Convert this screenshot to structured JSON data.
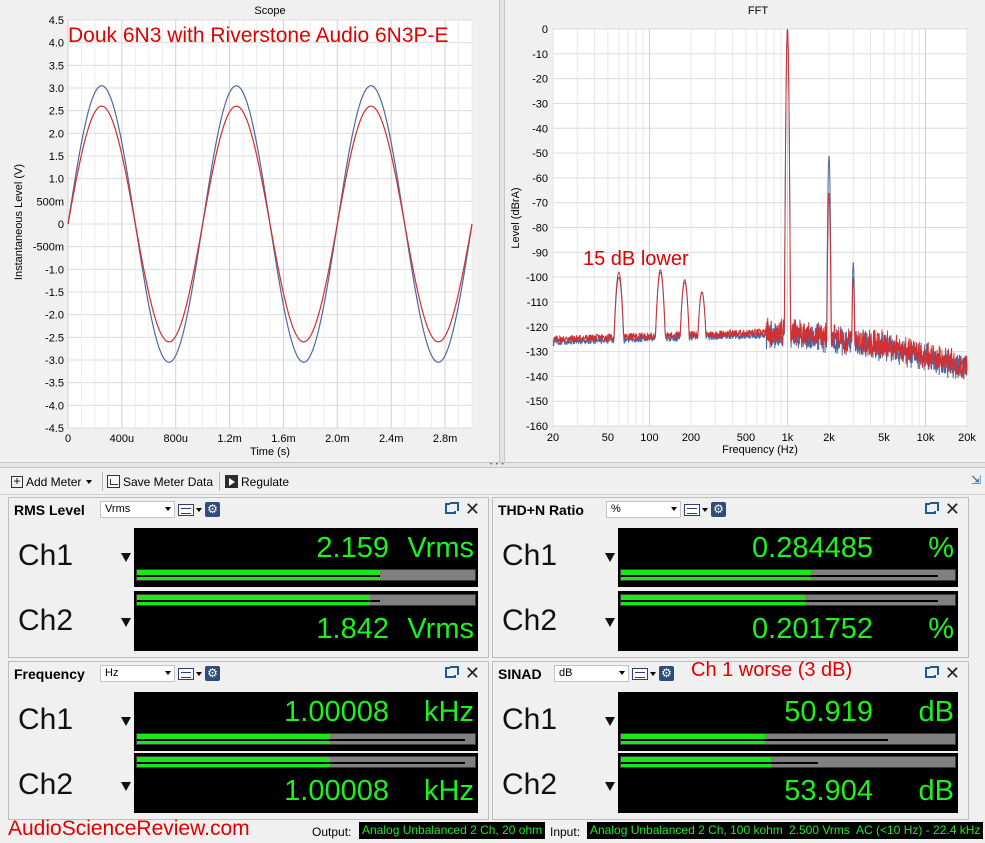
{
  "colors": {
    "ch1_trace": "#4a6aa5",
    "ch2_trace": "#d42e2e",
    "meter_text": "#1df21d",
    "bar_fill": "#16e916",
    "annotation": "#e00000"
  },
  "annotations": {
    "scope_overlay": "Douk 6N3 with Riverstone Audio 6N3P-E",
    "fft_overlay": "15 dB lower",
    "sinad_overlay": "Ch 1 worse (3 dB)"
  },
  "scope": {
    "title": "Scope",
    "xlabel": "Time (s)",
    "ylabel": "Instantaneous Level (V)",
    "yticks": [
      "4.5",
      "4.0",
      "3.5",
      "3.0",
      "2.5",
      "2.0",
      "1.5",
      "1.0",
      "500m",
      "0",
      "-500m",
      "-1.0",
      "-1.5",
      "-2.0",
      "-2.5",
      "-3.0",
      "-3.5",
      "-4.0",
      "-4.5"
    ],
    "xticks": [
      "0",
      "400u",
      "800u",
      "1.2m",
      "1.6m",
      "2.0m",
      "2.4m",
      "2.8m"
    ]
  },
  "fft": {
    "title": "FFT",
    "xlabel": "Frequency (Hz)",
    "ylabel": "Level (dBrA)",
    "yticks": [
      "0",
      "-10",
      "-20",
      "-30",
      "-40",
      "-50",
      "-60",
      "-70",
      "-80",
      "-90",
      "-100",
      "-110",
      "-120",
      "-130",
      "-140",
      "-150",
      "-160"
    ],
    "xticks": [
      "20",
      "50",
      "100",
      "200",
      "500",
      "1k",
      "2k",
      "5k",
      "10k",
      "20k"
    ]
  },
  "chart_data": [
    {
      "type": "line",
      "title": "Scope",
      "xlabel": "Time (s)",
      "ylabel": "Instantaneous Level (V)",
      "xlim": [
        0,
        0.003
      ],
      "ylim": [
        -4.5,
        4.5
      ],
      "grid": true,
      "series": [
        {
          "name": "Ch1",
          "shape": "sine",
          "frequency_hz": 1000,
          "amplitude_v": 3.05,
          "phase_zero_crossing_s": 0
        },
        {
          "name": "Ch2",
          "shape": "sine",
          "frequency_hz": 1000,
          "amplitude_v": 2.6,
          "phase_zero_crossing_s": 0
        }
      ]
    },
    {
      "type": "line",
      "title": "FFT",
      "xlabel": "Frequency (Hz)",
      "ylabel": "Level (dBrA)",
      "xscale": "log",
      "xlim": [
        20,
        20000
      ],
      "ylim": [
        -160,
        0
      ],
      "grid": true,
      "series": [
        {
          "name": "Ch1",
          "peaks": [
            [
              60,
              -100
            ],
            [
              120,
              -98
            ],
            [
              180,
              -102
            ],
            [
              240,
              -106
            ],
            [
              1000,
              0
            ],
            [
              2000,
              -51
            ],
            [
              3000,
              -94
            ]
          ],
          "noise_floor_db": [
            [
              20,
              -126
            ],
            [
              1000,
              -123
            ],
            [
              5000,
              -128
            ],
            [
              20000,
              -137
            ]
          ]
        },
        {
          "name": "Ch2",
          "peaks": [
            [
              60,
              -98
            ],
            [
              120,
              -97
            ],
            [
              180,
              -101
            ],
            [
              240,
              -106
            ],
            [
              1000,
              0
            ],
            [
              2000,
              -66
            ],
            [
              3000,
              -100
            ]
          ],
          "noise_floor_db": [
            [
              20,
              -125
            ],
            [
              1000,
              -122
            ],
            [
              5000,
              -127
            ],
            [
              20000,
              -136
            ]
          ]
        }
      ]
    }
  ],
  "toolbar": {
    "add_meter": "Add Meter",
    "save_meter_data": "Save Meter Data",
    "regulate": "Regulate"
  },
  "meters": {
    "rms": {
      "title": "RMS Level",
      "unit_select": "Vrms",
      "ch1_label": "Ch1",
      "ch1_value": "2.159",
      "ch1_unit": "Vrms",
      "ch1_bar_fraction": 0.72,
      "ch1_peak_fraction": 0.72,
      "ch2_label": "Ch2",
      "ch2_value": "1.842",
      "ch2_unit": "Vrms",
      "ch2_bar_fraction": 0.69,
      "ch2_peak_fraction": 0.72
    },
    "thdn": {
      "title": "THD+N Ratio",
      "unit_select": "%",
      "ch1_label": "Ch1",
      "ch1_value": "0.284485",
      "ch1_unit": "%",
      "ch1_bar_fraction": 0.57,
      "ch1_peak_fraction": 0.95,
      "ch2_label": "Ch2",
      "ch2_value": "0.201752",
      "ch2_unit": "%",
      "ch2_bar_fraction": 0.55,
      "ch2_peak_fraction": 0.95
    },
    "freq": {
      "title": "Frequency",
      "unit_select": "Hz",
      "ch1_label": "Ch1",
      "ch1_value": "1.00008",
      "ch1_unit": "kHz",
      "ch1_bar_fraction": 0.57,
      "ch1_peak_fraction": 0.97,
      "ch2_label": "Ch2",
      "ch2_value": "1.00008",
      "ch2_unit": "kHz",
      "ch2_bar_fraction": 0.57,
      "ch2_peak_fraction": 0.97
    },
    "sinad": {
      "title": "SINAD",
      "unit_select": "dB",
      "ch1_label": "Ch1",
      "ch1_value": "50.919",
      "ch1_unit": "dB",
      "ch1_bar_fraction": 0.43,
      "ch1_peak_fraction": 0.8,
      "ch2_label": "Ch2",
      "ch2_value": "53.904",
      "ch2_unit": "dB",
      "ch2_bar_fraction": 0.45,
      "ch2_peak_fraction": 0.59
    }
  },
  "status": {
    "watermark": "AudioScienceReview.com",
    "output_label": "Output:",
    "output_value": "Analog Unbalanced 2 Ch, 20 ohm",
    "input_label": "Input:",
    "input_value": "Analog Unbalanced 2 Ch, 100 kohm",
    "level_value": "2.500 Vrms",
    "bandwidth_value": "AC (<10 Hz) - 22.4 kHz"
  }
}
